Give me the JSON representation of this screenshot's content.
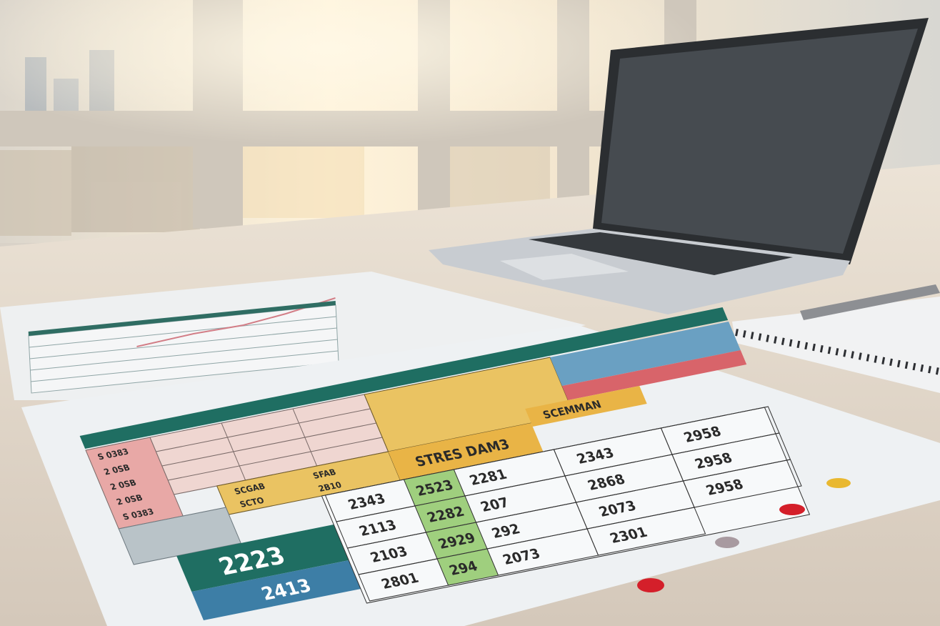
{
  "scene": {
    "colors": {
      "window_light": "#f7e7c8",
      "desk": "#e2d8cc",
      "paper": "#eef1f3",
      "teal": "#1f6e62",
      "pink": "#e8c2be",
      "red": "#d45a5c",
      "yellow": "#e9bd4e",
      "green": "#9fcf7e",
      "blue": "#4a86aa",
      "laptop": "#c9ccd0",
      "screen": "#3f4347"
    },
    "icons": [
      "laptop",
      "notebook",
      "pen"
    ]
  },
  "sheet": {
    "big_label": "2223",
    "sub_label": "2413",
    "banner_label": "STRES DAM3",
    "banner2_label": "SCEMMAN",
    "number_rows": [
      [
        "2343",
        "2281",
        "2343",
        "2958"
      ],
      [
        "2113",
        "207",
        "2868",
        "2958"
      ],
      [
        "2103",
        "292",
        "2073",
        "2958"
      ],
      [
        "2801",
        "2073",
        "2301"
      ]
    ],
    "green_cells": [
      "2523",
      "2282",
      "2929",
      "294"
    ],
    "left_cells": [
      "S 0383",
      "2 0SB",
      "2 0SB",
      "2 0SB",
      "S 0383"
    ],
    "yellow_cells": [
      "SCGAB",
      "SFAB",
      "SCTO",
      "2B10"
    ]
  }
}
